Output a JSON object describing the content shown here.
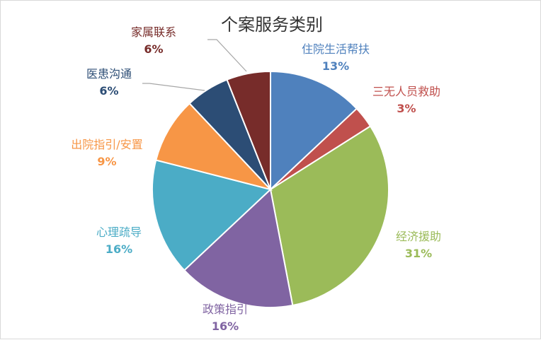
{
  "chart_data": {
    "type": "pie",
    "title": "个案服务类别",
    "slices": [
      {
        "name": "住院生活帮扶",
        "value": 13,
        "label": "13%",
        "color": "#4F81BD"
      },
      {
        "name": "三无人员救助",
        "value": 3,
        "label": "3%",
        "color": "#C0504D"
      },
      {
        "name": "经济援助",
        "value": 31,
        "label": "31%",
        "color": "#9BBB59"
      },
      {
        "name": "政策指引",
        "value": 16,
        "label": "16%",
        "color": "#8064A2"
      },
      {
        "name": "心理疏导",
        "value": 16,
        "label": "16%",
        "color": "#4BACC6"
      },
      {
        "name": "出院指引/安置",
        "value": 9,
        "label": "9%",
        "color": "#F79646"
      },
      {
        "name": "医患沟通",
        "value": 6,
        "label": "6%",
        "color": "#2C4D75"
      },
      {
        "name": "家属联系",
        "value": 6,
        "label": "6%",
        "color": "#772C2A"
      }
    ],
    "legend": "none",
    "data_labels": "outside"
  }
}
